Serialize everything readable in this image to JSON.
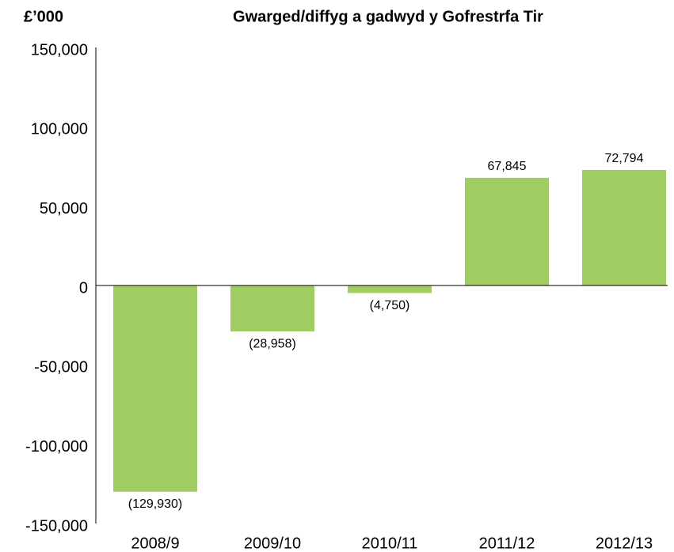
{
  "chart_data": {
    "type": "bar",
    "title": "Gwarged/diffyg a gadwyd y Gofrestrfa Tir",
    "y_label": "£’000",
    "categories": [
      "2008/9",
      "2009/10",
      "2010/11",
      "2011/12",
      "2012/13"
    ],
    "values": [
      -129930,
      -28958,
      -4750,
      67845,
      72794
    ],
    "value_labels": [
      "(129,930)",
      "(28,958)",
      "(4,750)",
      "67,845",
      "72,794"
    ],
    "color": "#9fcd63",
    "ylim": [
      -150000,
      150000
    ],
    "yticks": [
      {
        "value": -150000,
        "label": "-150,000"
      },
      {
        "value": -100000,
        "label": "-100,000"
      },
      {
        "value": -50000,
        "label": "-50,000"
      },
      0,
      {
        "value": 50000,
        "label": "50,000"
      },
      {
        "value": 100000,
        "label": "100,000"
      },
      {
        "value": 150000,
        "label": "150,000"
      }
    ],
    "grid": false
  }
}
